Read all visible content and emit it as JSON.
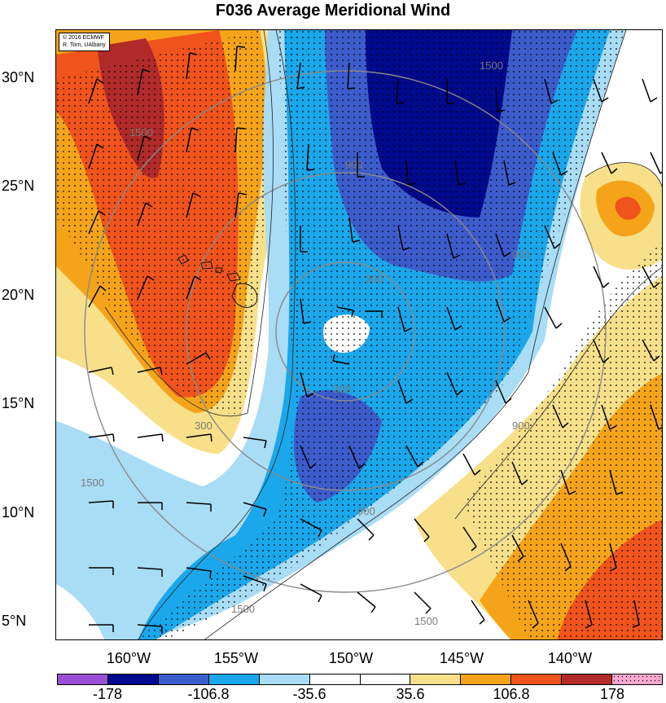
{
  "title": "F036 Average Meridional Wind",
  "credit": {
    "line1": "© 2016 ECMWF",
    "line2": "R. Torn, UAlbany"
  },
  "latitude_labels": [
    "30°N",
    "25°N",
    "20°N",
    "15°N",
    "10°N",
    "5°N"
  ],
  "longitude_labels": [
    "160°W",
    "155°W",
    "150°W",
    "145°W",
    "140°W"
  ],
  "contour_labels": [
    "1500",
    "900",
    "300",
    "1500",
    "900",
    "300",
    "1500",
    "1500",
    "900",
    "300",
    "900",
    "1500"
  ],
  "colorbar": {
    "colors": [
      "#9b4fd6",
      "#000a8c",
      "#3d5ccc",
      "#1aa7eb",
      "#a9dcf5",
      "#ffffff",
      "#ffffff",
      "#f8e08a",
      "#f5a41a",
      "#f0541c",
      "#b02a2a",
      "#f7a6cc"
    ],
    "labels": [
      "-178",
      "-106.8",
      "-35.6",
      "35.6",
      "106.8",
      "178"
    ]
  }
}
